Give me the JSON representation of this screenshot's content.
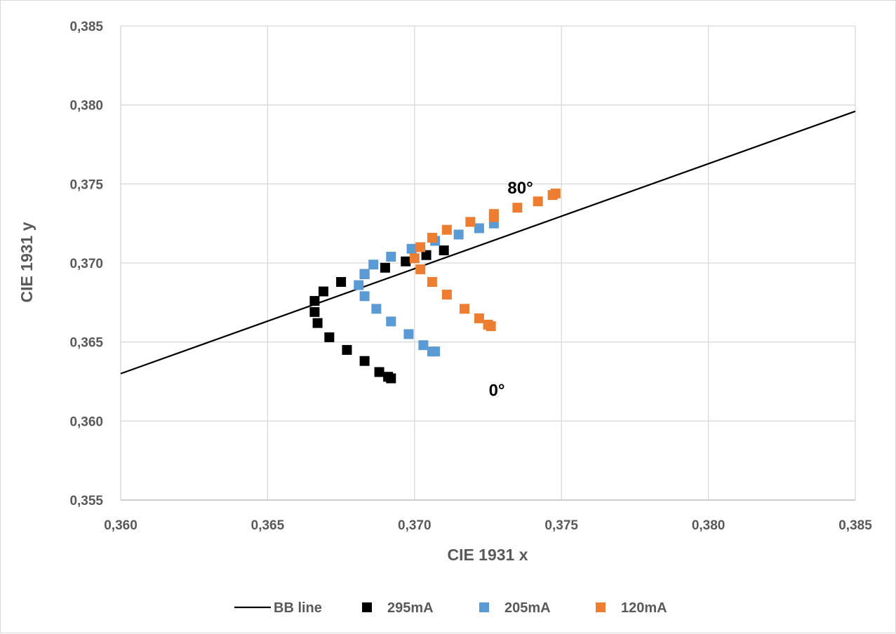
{
  "chart_data": {
    "type": "scatter",
    "title": "",
    "xlabel": "CIE 1931 x",
    "ylabel": "CIE 1931 y",
    "xlim": [
      0.36,
      0.385
    ],
    "ylim": [
      0.355,
      0.385
    ],
    "xticks": [
      0.36,
      0.365,
      0.37,
      0.375,
      0.38,
      0.385
    ],
    "yticks": [
      0.355,
      0.36,
      0.365,
      0.37,
      0.375,
      0.38,
      0.385
    ],
    "xtick_labels": [
      "0,360",
      "0,365",
      "0,370",
      "0,375",
      "0,380",
      "0,385"
    ],
    "ytick_labels": [
      "0,355",
      "0,360",
      "0,365",
      "0,370",
      "0,375",
      "0,380",
      "0,385"
    ],
    "grid": true,
    "legend_position": "bottom",
    "annotations": [
      {
        "text": "80°",
        "x": 0.3736,
        "y": 0.3744
      },
      {
        "text": "0°",
        "x": 0.3728,
        "y": 0.3616
      }
    ],
    "series": [
      {
        "name": "BB line",
        "kind": "line",
        "color": "#000000",
        "x": [
          0.36,
          0.385
        ],
        "y": [
          0.363,
          0.3796
        ]
      },
      {
        "name": "295mA",
        "kind": "marker",
        "color": "#000000",
        "x": [
          0.3692,
          0.3691,
          0.3688,
          0.3683,
          0.3677,
          0.3671,
          0.3667,
          0.3666,
          0.3666,
          0.3669,
          0.3675,
          0.3683,
          0.369,
          0.3697,
          0.3704,
          0.371
        ],
        "y": [
          0.3627,
          0.3628,
          0.3631,
          0.3638,
          0.3645,
          0.3653,
          0.3662,
          0.3669,
          0.3676,
          0.3682,
          0.3688,
          0.3693,
          0.3697,
          0.3701,
          0.3705,
          0.3708
        ]
      },
      {
        "name": "205mA",
        "kind": "marker",
        "color": "#5b9bd5",
        "x": [
          0.3707,
          0.3706,
          0.3703,
          0.3698,
          0.3692,
          0.3687,
          0.3683,
          0.3681,
          0.3683,
          0.3686,
          0.3692,
          0.3699,
          0.3707,
          0.3715,
          0.3722,
          0.3727
        ],
        "y": [
          0.3644,
          0.3644,
          0.3648,
          0.3655,
          0.3663,
          0.3671,
          0.3679,
          0.3686,
          0.3693,
          0.3699,
          0.3704,
          0.3709,
          0.3714,
          0.3718,
          0.3722,
          0.3725
        ]
      },
      {
        "name": "120mA",
        "kind": "marker",
        "color": "#ed7d31",
        "x": [
          0.3726,
          0.3725,
          0.3722,
          0.3717,
          0.3711,
          0.3706,
          0.3702,
          0.37,
          0.3702,
          0.3706,
          0.3711,
          0.3719,
          0.3727,
          0.3727,
          0.3735,
          0.3742,
          0.3747,
          0.3748
        ],
        "y": [
          0.366,
          0.3661,
          0.3665,
          0.3671,
          0.368,
          0.3688,
          0.3696,
          0.3703,
          0.371,
          0.3716,
          0.3721,
          0.3726,
          0.3729,
          0.3731,
          0.3735,
          0.3739,
          0.3743,
          0.3744
        ]
      }
    ]
  }
}
